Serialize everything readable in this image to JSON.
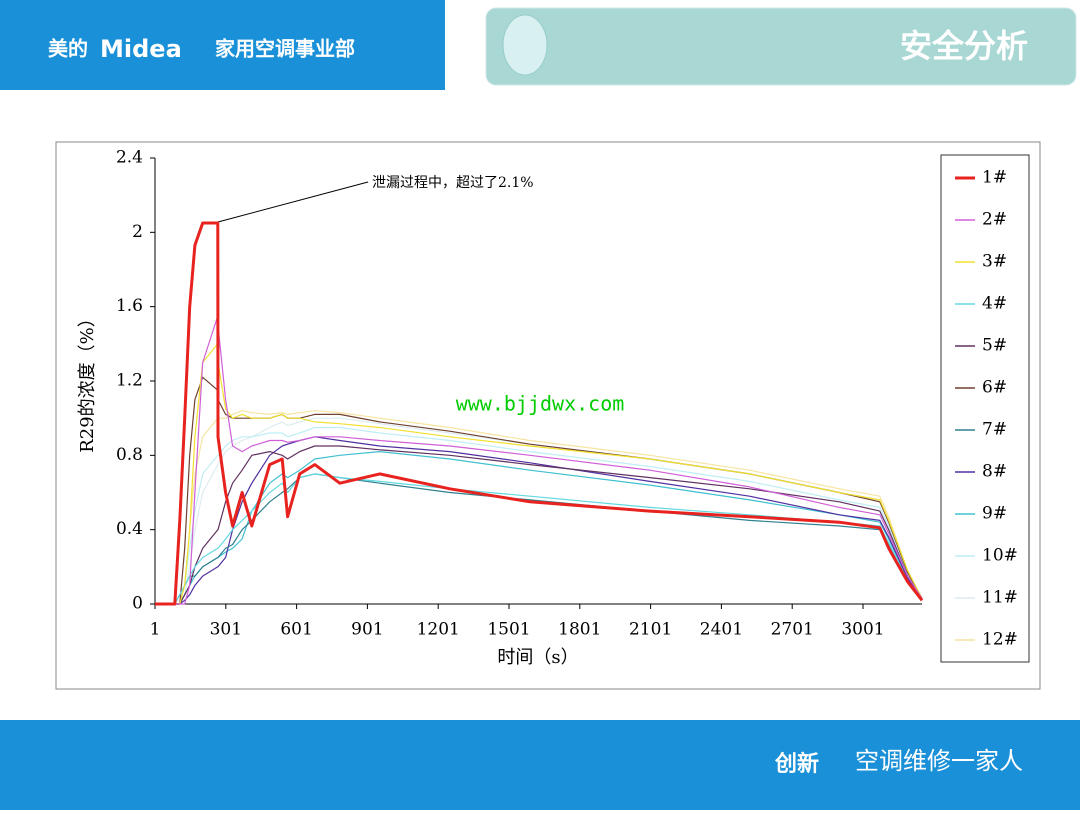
{
  "header": {
    "brand_cn": "美的",
    "brand": "Midea",
    "division": "家用空调事业部",
    "section": "安全分析"
  },
  "watermark": "www.bjjdwx.com",
  "footer": {
    "slogan": "创新",
    "account": "空调维修一家人"
  },
  "chart_data": {
    "type": "line",
    "ylabel": "R29的浓度（%）",
    "xlabel": "时间（s）",
    "annotation": "泄漏过程中，超过了2.1%",
    "xlim": [
      1,
      3251
    ],
    "xticks": [
      1,
      301,
      601,
      901,
      1201,
      1501,
      1801,
      2101,
      2401,
      2701,
      3001
    ],
    "ylim": [
      0,
      2.4
    ],
    "yticks": [
      0,
      0.4,
      0.8,
      1.2,
      1.6,
      2,
      2.4
    ],
    "x": [
      1,
      85,
      106,
      127,
      148,
      170,
      203,
      267,
      268,
      300,
      330,
      370,
      411,
      487,
      540,
      563,
      614,
      678,
      784,
      953,
      1250,
      1590,
      2098,
      2520,
      2900,
      3072,
      3110,
      3190,
      3251
    ],
    "series": [
      {
        "name": "1#",
        "color": "#e8221e",
        "values": [
          0,
          0,
          0.45,
          1.0,
          1.6,
          1.93,
          2.05,
          2.05,
          0.9,
          0.6,
          0.42,
          0.6,
          0.42,
          0.75,
          0.78,
          0.47,
          0.7,
          0.75,
          0.65,
          0.7,
          0.62,
          0.55,
          0.5,
          0.47,
          0.44,
          0.41,
          0.3,
          0.12,
          0.02
        ]
      },
      {
        "name": "2#",
        "color": "#d060d8",
        "values": [
          0,
          0,
          0,
          0,
          0.1,
          0.6,
          1.3,
          1.55,
          1.5,
          1.1,
          0.85,
          0.82,
          0.85,
          0.88,
          0.88,
          0.87,
          0.88,
          0.9,
          0.9,
          0.88,
          0.85,
          0.8,
          0.72,
          0.63,
          0.52,
          0.48,
          0.38,
          0.15,
          0.03
        ]
      },
      {
        "name": "3#",
        "color": "#f0e030",
        "values": [
          0,
          0,
          0,
          0.1,
          0.4,
          0.9,
          1.3,
          1.4,
          1.3,
          1.05,
          1.0,
          1.02,
          1.0,
          1.0,
          1.02,
          1.0,
          1.0,
          0.98,
          0.97,
          0.95,
          0.9,
          0.85,
          0.78,
          0.7,
          0.6,
          0.56,
          0.45,
          0.18,
          0.03
        ]
      },
      {
        "name": "4#",
        "color": "#60d8e0",
        "values": [
          0,
          0,
          0.05,
          0.1,
          0.15,
          0.2,
          0.25,
          0.3,
          0.3,
          0.35,
          0.4,
          0.45,
          0.5,
          0.6,
          0.65,
          0.6,
          0.68,
          0.7,
          0.68,
          0.66,
          0.62,
          0.58,
          0.52,
          0.48,
          0.44,
          0.42,
          0.33,
          0.12,
          0.02
        ]
      },
      {
        "name": "5#",
        "color": "#603060",
        "values": [
          0,
          0,
          0,
          0.05,
          0.1,
          0.2,
          0.3,
          0.4,
          0.4,
          0.55,
          0.65,
          0.72,
          0.8,
          0.82,
          0.8,
          0.78,
          0.82,
          0.85,
          0.85,
          0.83,
          0.8,
          0.75,
          0.68,
          0.62,
          0.55,
          0.5,
          0.4,
          0.15,
          0.03
        ]
      },
      {
        "name": "6#",
        "color": "#704030",
        "values": [
          0,
          0,
          0,
          0.3,
          0.8,
          1.1,
          1.22,
          1.15,
          1.1,
          1.02,
          1.0,
          1.0,
          1.0,
          1.0,
          1.02,
          1.0,
          1.0,
          1.02,
          1.02,
          0.98,
          0.93,
          0.86,
          0.78,
          0.7,
          0.6,
          0.55,
          0.44,
          0.17,
          0.03
        ]
      },
      {
        "name": "7#",
        "color": "#308090",
        "values": [
          0,
          0,
          0.05,
          0.1,
          0.15,
          0.15,
          0.2,
          0.25,
          0.25,
          0.3,
          0.32,
          0.4,
          0.45,
          0.55,
          0.6,
          0.62,
          0.68,
          0.7,
          0.68,
          0.65,
          0.6,
          0.56,
          0.5,
          0.45,
          0.42,
          0.4,
          0.32,
          0.12,
          0.02
        ]
      },
      {
        "name": "8#",
        "color": "#5030a0",
        "values": [
          0,
          0,
          0,
          0.02,
          0.05,
          0.1,
          0.15,
          0.2,
          0.2,
          0.25,
          0.4,
          0.55,
          0.65,
          0.8,
          0.85,
          0.86,
          0.88,
          0.9,
          0.88,
          0.85,
          0.82,
          0.76,
          0.66,
          0.58,
          0.48,
          0.45,
          0.36,
          0.14,
          0.02
        ]
      },
      {
        "name": "9#",
        "color": "#40c0d0",
        "values": [
          0,
          0,
          0,
          0.05,
          0.1,
          0.15,
          0.2,
          0.25,
          0.25,
          0.28,
          0.3,
          0.35,
          0.5,
          0.65,
          0.7,
          0.68,
          0.72,
          0.78,
          0.8,
          0.82,
          0.78,
          0.72,
          0.64,
          0.56,
          0.48,
          0.44,
          0.35,
          0.13,
          0.02
        ]
      },
      {
        "name": "10#",
        "color": "#bfeef4",
        "values": [
          0,
          0,
          0,
          0.1,
          0.3,
          0.5,
          0.7,
          0.8,
          0.8,
          0.85,
          0.88,
          0.9,
          0.9,
          0.92,
          0.92,
          0.9,
          0.92,
          0.95,
          0.95,
          0.92,
          0.88,
          0.82,
          0.74,
          0.66,
          0.56,
          0.52,
          0.42,
          0.16,
          0.03
        ]
      },
      {
        "name": "11#",
        "color": "#dcecf0",
        "values": [
          0,
          0,
          0,
          0.05,
          0.2,
          0.4,
          0.6,
          0.75,
          0.75,
          0.82,
          0.85,
          0.88,
          0.9,
          0.95,
          0.98,
          0.96,
          0.98,
          1.0,
          1.0,
          0.97,
          0.92,
          0.86,
          0.78,
          0.7,
          0.6,
          0.56,
          0.45,
          0.17,
          0.03
        ]
      },
      {
        "name": "12#",
        "color": "#f6e4a0",
        "values": [
          0,
          0,
          0,
          0.1,
          0.4,
          0.7,
          0.9,
          1.0,
          1.0,
          1.0,
          1.02,
          1.04,
          1.03,
          1.02,
          1.03,
          1.02,
          1.03,
          1.04,
          1.03,
          1.0,
          0.95,
          0.88,
          0.8,
          0.72,
          0.62,
          0.58,
          0.47,
          0.18,
          0.03
        ]
      }
    ]
  }
}
